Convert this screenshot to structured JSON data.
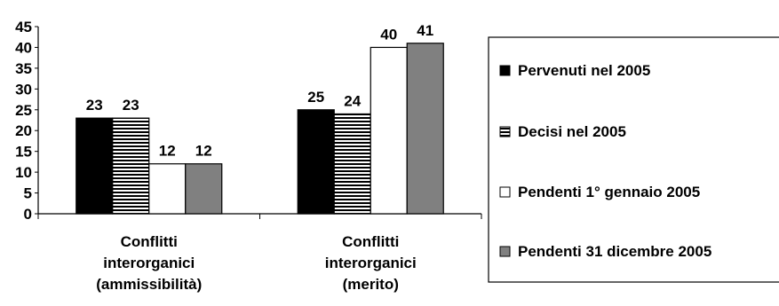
{
  "chart_data": {
    "type": "bar",
    "categories": [
      [
        "Conflitti",
        "interorganici",
        "(ammissibilità)"
      ],
      [
        "Conflitti",
        "interorganici",
        "(merito)"
      ]
    ],
    "series": [
      {
        "name": "Pervenuti nel 2005",
        "values": [
          23,
          25
        ],
        "fill": "solid-black",
        "color": "#000000"
      },
      {
        "name": "Decisi nel 2005",
        "values": [
          23,
          24
        ],
        "fill": "horizontal-stripes",
        "color": "#000000"
      },
      {
        "name": "Pendenti 1° gennaio 2005",
        "values": [
          12,
          40
        ],
        "fill": "white",
        "color": "#ffffff"
      },
      {
        "name": "Pendenti 31 dicembre 2005",
        "values": [
          12,
          41
        ],
        "fill": "gray",
        "color": "#808080"
      }
    ],
    "y_ticks": [
      "0",
      "5",
      "10",
      "15",
      "20",
      "25",
      "30",
      "35",
      "40",
      "45"
    ],
    "ylim": [
      0,
      45
    ],
    "grid": false,
    "legend_position": "right",
    "title": "",
    "xlabel": "",
    "ylabel": ""
  }
}
